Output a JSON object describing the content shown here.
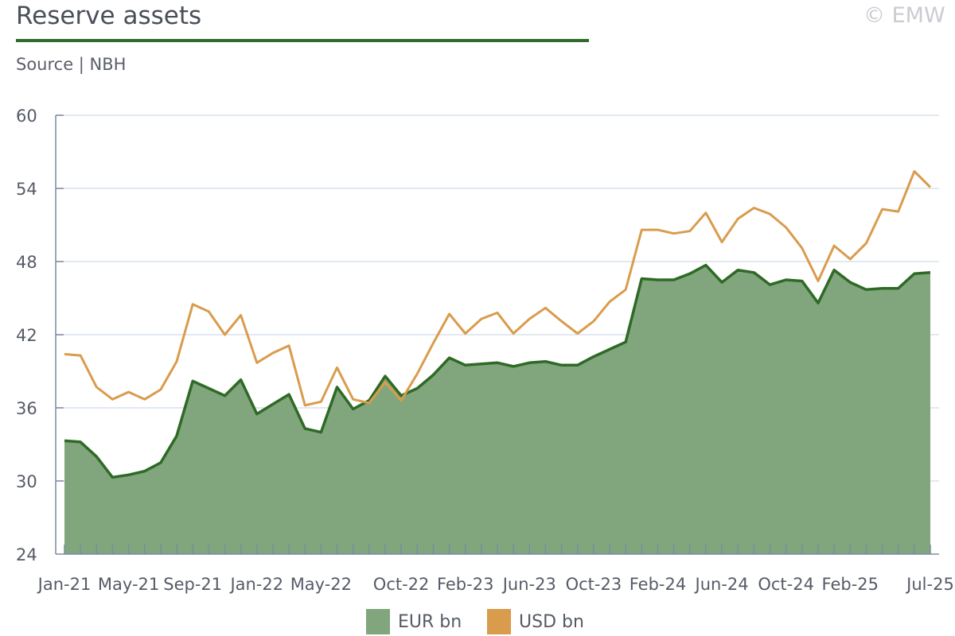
{
  "header": {
    "title": "Reserve assets",
    "source": "Source | NBH",
    "copyright": "© EMW"
  },
  "colors": {
    "eur_line": "#2e6a26",
    "eur_fill": "#81a67d",
    "usd_line": "#d99c4d",
    "grid": "#d9e2ec",
    "axis": "#7c8ba1",
    "rule": "#2f6b2a"
  },
  "legend": [
    {
      "label": "EUR bn",
      "color": "#81a67d"
    },
    {
      "label": "USD bn",
      "color": "#d99c4d"
    }
  ],
  "chart_data": {
    "type": "area",
    "title": "Reserve assets",
    "ylim": [
      24,
      60
    ],
    "yticks": [
      24,
      30,
      36,
      42,
      48,
      54,
      60
    ],
    "x": [
      "Jan-21",
      "Feb-21",
      "Mar-21",
      "Apr-21",
      "May-21",
      "Jun-21",
      "Jul-21",
      "Aug-21",
      "Sep-21",
      "Oct-21",
      "Nov-21",
      "Dec-21",
      "Jan-22",
      "Feb-22",
      "Mar-22",
      "Apr-22",
      "May-22",
      "Jun-22",
      "Jul-22",
      "Aug-22",
      "Sep-22",
      "Oct-22",
      "Nov-22",
      "Dec-22",
      "Jan-23",
      "Feb-23",
      "Mar-23",
      "Apr-23",
      "May-23",
      "Jun-23",
      "Jul-23",
      "Aug-23",
      "Sep-23",
      "Oct-23",
      "Nov-23",
      "Dec-23",
      "Jan-24",
      "Feb-24",
      "Mar-24",
      "Apr-24",
      "May-24",
      "Jun-24",
      "Jul-24",
      "Aug-24",
      "Sep-24",
      "Oct-24",
      "Nov-24",
      "Dec-24",
      "Jan-25",
      "Feb-25",
      "Mar-25",
      "Apr-25",
      "May-25",
      "Jun-25",
      "Jul-25"
    ],
    "xtick_labels": [
      "Jan-21",
      "May-21",
      "Sep-21",
      "Jan-22",
      "May-22",
      "Oct-22",
      "Feb-23",
      "Jun-23",
      "Oct-23",
      "Feb-24",
      "Jun-24",
      "Oct-24",
      "Feb-25",
      "Jul-25"
    ],
    "grid": true,
    "legend_position": "bottom",
    "series": [
      {
        "name": "EUR bn",
        "type": "area",
        "values": [
          33.3,
          33.2,
          32.0,
          30.3,
          30.5,
          30.8,
          31.5,
          33.7,
          38.2,
          37.6,
          37.0,
          38.3,
          35.5,
          36.3,
          37.1,
          34.3,
          34.0,
          37.7,
          35.9,
          36.6,
          38.6,
          37.0,
          37.6,
          38.7,
          40.1,
          39.5,
          39.6,
          39.7,
          39.4,
          39.7,
          39.8,
          39.5,
          39.5,
          40.2,
          40.8,
          41.4,
          46.6,
          46.5,
          46.5,
          47.0,
          47.7,
          46.3,
          47.3,
          47.1,
          46.1,
          46.5,
          46.4,
          44.6,
          47.3,
          46.3,
          45.7,
          45.8,
          45.8,
          47.0,
          47.1
        ]
      },
      {
        "name": "USD bn",
        "type": "line",
        "values": [
          40.4,
          40.3,
          37.7,
          36.7,
          37.3,
          36.7,
          37.5,
          39.8,
          44.5,
          43.9,
          42.0,
          43.6,
          39.7,
          40.5,
          41.1,
          36.2,
          36.5,
          39.3,
          36.7,
          36.4,
          38.1,
          36.6,
          38.8,
          41.3,
          43.7,
          42.1,
          43.3,
          43.8,
          42.1,
          43.3,
          44.2,
          43.1,
          42.1,
          43.1,
          44.7,
          45.7,
          50.6,
          50.6,
          50.3,
          50.5,
          52.0,
          49.6,
          51.5,
          52.4,
          51.9,
          50.8,
          49.1,
          46.4,
          49.3,
          48.2,
          49.5,
          52.3,
          52.1,
          55.4,
          54.1
        ]
      }
    ]
  }
}
